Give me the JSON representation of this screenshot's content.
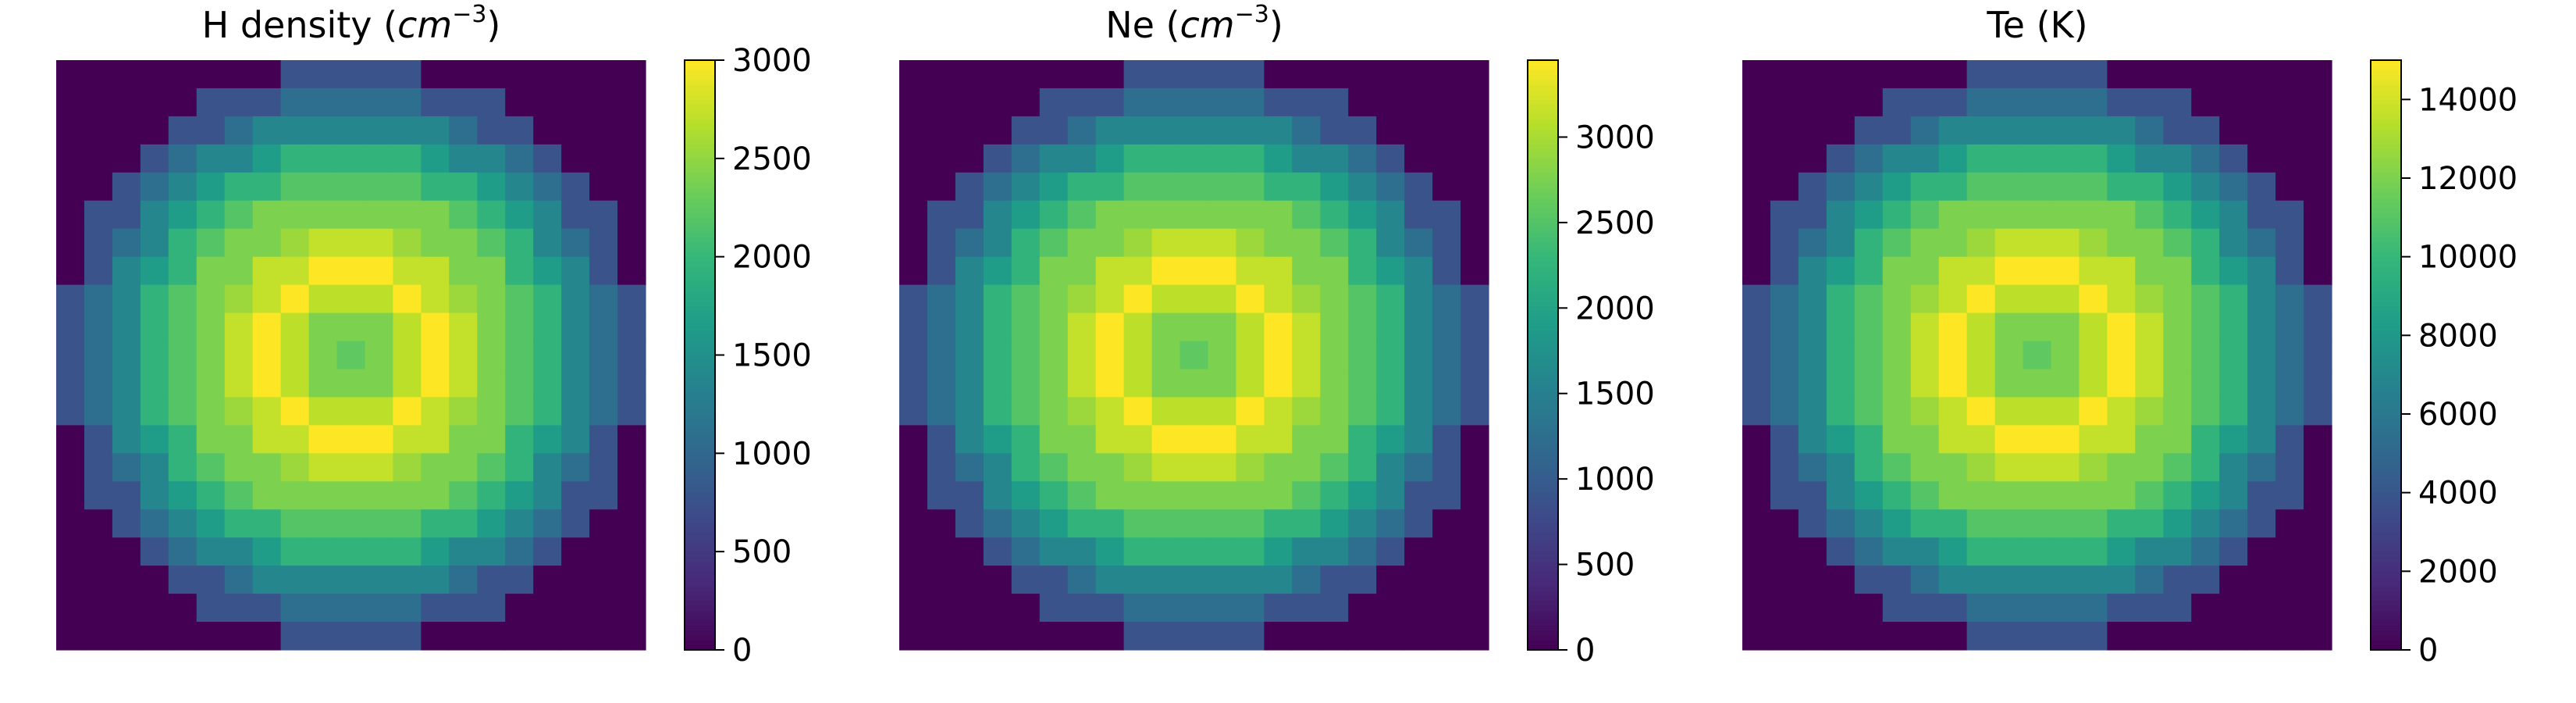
{
  "chart_data": [
    {
      "type": "heatmap",
      "title": "H density (cm⁻³)",
      "title_base": "H density (",
      "title_unit": "cm",
      "title_exp": "−3",
      "title_close": ")",
      "vmin": 0,
      "vmax": 3000,
      "colorbar_ticks": [
        0,
        500,
        1000,
        1500,
        2000,
        2500,
        3000
      ],
      "colorbar_tick_labels": [
        "0",
        "500",
        "1000",
        "1500",
        "2000",
        "2500",
        "3000"
      ],
      "colormap": "viridis",
      "grid_size": 21,
      "field": "radial density profile, peak ring at radius 3.16 cells"
    },
    {
      "type": "heatmap",
      "title": "Ne (cm⁻³)",
      "title_base": "Ne (",
      "title_unit": "cm",
      "title_exp": "−3",
      "title_close": ")",
      "vmin": 0,
      "vmax": 3450,
      "colorbar_ticks": [
        0,
        500,
        1000,
        1500,
        2000,
        2500,
        3000
      ],
      "colorbar_tick_labels": [
        "0",
        "500",
        "1000",
        "1500",
        "2000",
        "2500",
        "3000"
      ],
      "colormap": "viridis",
      "grid_size": 21
    },
    {
      "type": "heatmap",
      "title": "Te (K)",
      "title_base": "Te (K)",
      "vmin": 0,
      "vmax": 15000,
      "colorbar_ticks": [
        0,
        2000,
        4000,
        6000,
        8000,
        10000,
        12000,
        14000
      ],
      "colorbar_tick_labels": [
        "0",
        "2000",
        "4000",
        "6000",
        "8000",
        "10000",
        "12000",
        "14000"
      ],
      "colormap": "viridis",
      "grid_size": 21
    }
  ],
  "colors": {
    "viridis_stops": [
      "#440154",
      "#482878",
      "#3e4989",
      "#31688e",
      "#26828e",
      "#1f9e89",
      "#35b779",
      "#6ece58",
      "#b5de2b",
      "#fde725"
    ]
  }
}
